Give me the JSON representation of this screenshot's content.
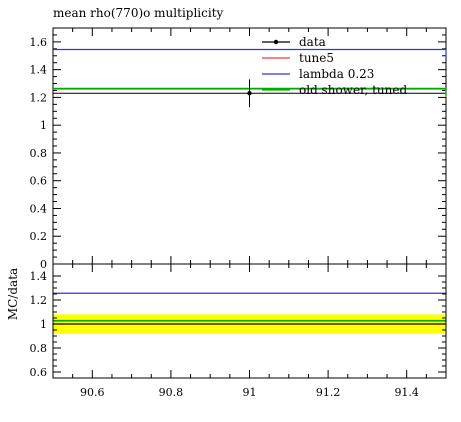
{
  "chart_data": [
    {
      "panel": "main",
      "type": "line",
      "title": "mean rho(770)o multiplicity",
      "xlim": [
        90.5,
        91.5
      ],
      "ylim": [
        0,
        1.7
      ],
      "yticks": [
        0,
        0.2,
        0.4,
        0.6,
        0.8,
        1,
        1.2,
        1.4,
        1.6
      ],
      "ytick_labels": [
        "0",
        "0.2",
        "0.4",
        "0.6",
        "0.8",
        "1",
        "1.2",
        "1.4",
        "1.6"
      ],
      "legend_position": "top-right",
      "data": {
        "name": "data",
        "x": 91.0,
        "y": 1.23,
        "yerr": 0.1,
        "color": "#000000"
      },
      "series": [
        {
          "name": "tune5",
          "y": 1.26,
          "color": "#ff3333"
        },
        {
          "name": "lambda 0.23",
          "y": 1.545,
          "color": "#3333dd"
        },
        {
          "name": "old shower, tuned",
          "y": 1.265,
          "color": "#00aa00"
        }
      ],
      "data_band": {
        "y": 1.23,
        "color": "#000000"
      }
    },
    {
      "panel": "ratio",
      "type": "line",
      "ylabel": "MC/data",
      "xlim": [
        90.5,
        91.5
      ],
      "ylim": [
        0.55,
        1.5
      ],
      "xticks": [
        90.6,
        90.8,
        91,
        91.2,
        91.4
      ],
      "xtick_labels": [
        "90.6",
        "90.8",
        "91",
        "91.2",
        "91.4"
      ],
      "yticks": [
        0.6,
        0.8,
        1,
        1.2,
        1.4
      ],
      "ytick_labels": [
        "0.6",
        "0.8",
        "1",
        "1.2",
        "1.4"
      ],
      "band": {
        "low": 0.92,
        "high": 1.08,
        "color": "#ffff00"
      },
      "series": [
        {
          "name": "tune5",
          "y": 1.025,
          "color": "#ff3333"
        },
        {
          "name": "lambda 0.23",
          "y": 1.256,
          "color": "#3333dd"
        },
        {
          "name": "old shower, tuned",
          "y": 1.029,
          "color": "#00aa00"
        },
        {
          "name": "data",
          "y": 1.0,
          "color": "#000000"
        }
      ]
    }
  ]
}
